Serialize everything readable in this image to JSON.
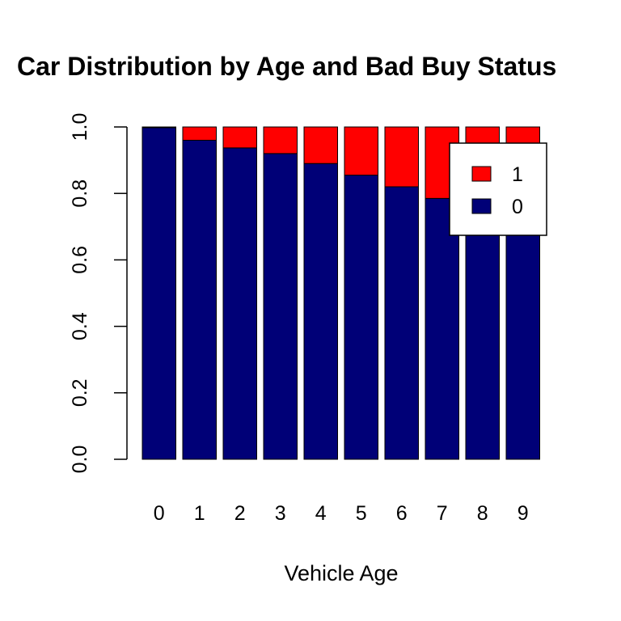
{
  "chart_data": {
    "type": "bar",
    "stacked": true,
    "title": "Car Distribution by Age and Bad Buy Status",
    "xlabel": "Vehicle Age",
    "ylabel": "",
    "ylim": [
      0,
      1
    ],
    "yticks": [
      "0.0",
      "0.2",
      "0.4",
      "0.6",
      "0.8",
      "1.0"
    ],
    "categories": [
      "0",
      "1",
      "2",
      "3",
      "4",
      "5",
      "6",
      "7",
      "8",
      "9"
    ],
    "series": [
      {
        "name": "0",
        "color": "#000077",
        "values": [
          0.998,
          0.96,
          0.937,
          0.92,
          0.89,
          0.855,
          0.82,
          0.785,
          0.77,
          0.76
        ]
      },
      {
        "name": "1",
        "color": "#ff0000",
        "values": [
          0.002,
          0.04,
          0.063,
          0.08,
          0.11,
          0.145,
          0.18,
          0.215,
          0.23,
          0.24
        ]
      }
    ],
    "legend": {
      "position": "top-right",
      "entries": [
        {
          "label": "1",
          "color": "#ff0000"
        },
        {
          "label": "0",
          "color": "#000077"
        }
      ]
    }
  }
}
